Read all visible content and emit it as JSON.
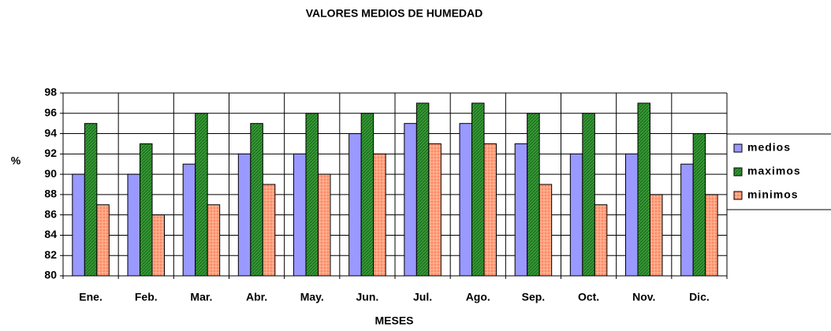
{
  "chart_data": {
    "type": "bar",
    "title": "VALORES MEDIOS DE HUMEDAD",
    "x_label": "MESES",
    "y_label": "%",
    "categories": [
      "Ene.",
      "Feb.",
      "Mar.",
      "Abr.",
      "May.",
      "Jun.",
      "Jul.",
      "Ago.",
      "Sep.",
      "Oct.",
      "Nov.",
      "Dic."
    ],
    "series": [
      {
        "name": "medios",
        "color": "#9999ff",
        "values": [
          90,
          90,
          91,
          92,
          92,
          94,
          95,
          95,
          93,
          92,
          92,
          91
        ]
      },
      {
        "name": "maximos",
        "color": "#339933",
        "values": [
          95,
          93,
          96,
          95,
          96,
          96,
          97,
          97,
          96,
          96,
          97,
          94
        ]
      },
      {
        "name": "minimos",
        "color": "#ff8866",
        "values": [
          87,
          86,
          87,
          89,
          90,
          92,
          93,
          93,
          89,
          87,
          88,
          88
        ]
      }
    ],
    "ylim": [
      80,
      98
    ],
    "yticks": [
      80,
      82,
      84,
      86,
      88,
      90,
      92,
      94,
      96,
      98
    ],
    "grid": true,
    "legend": "right"
  }
}
